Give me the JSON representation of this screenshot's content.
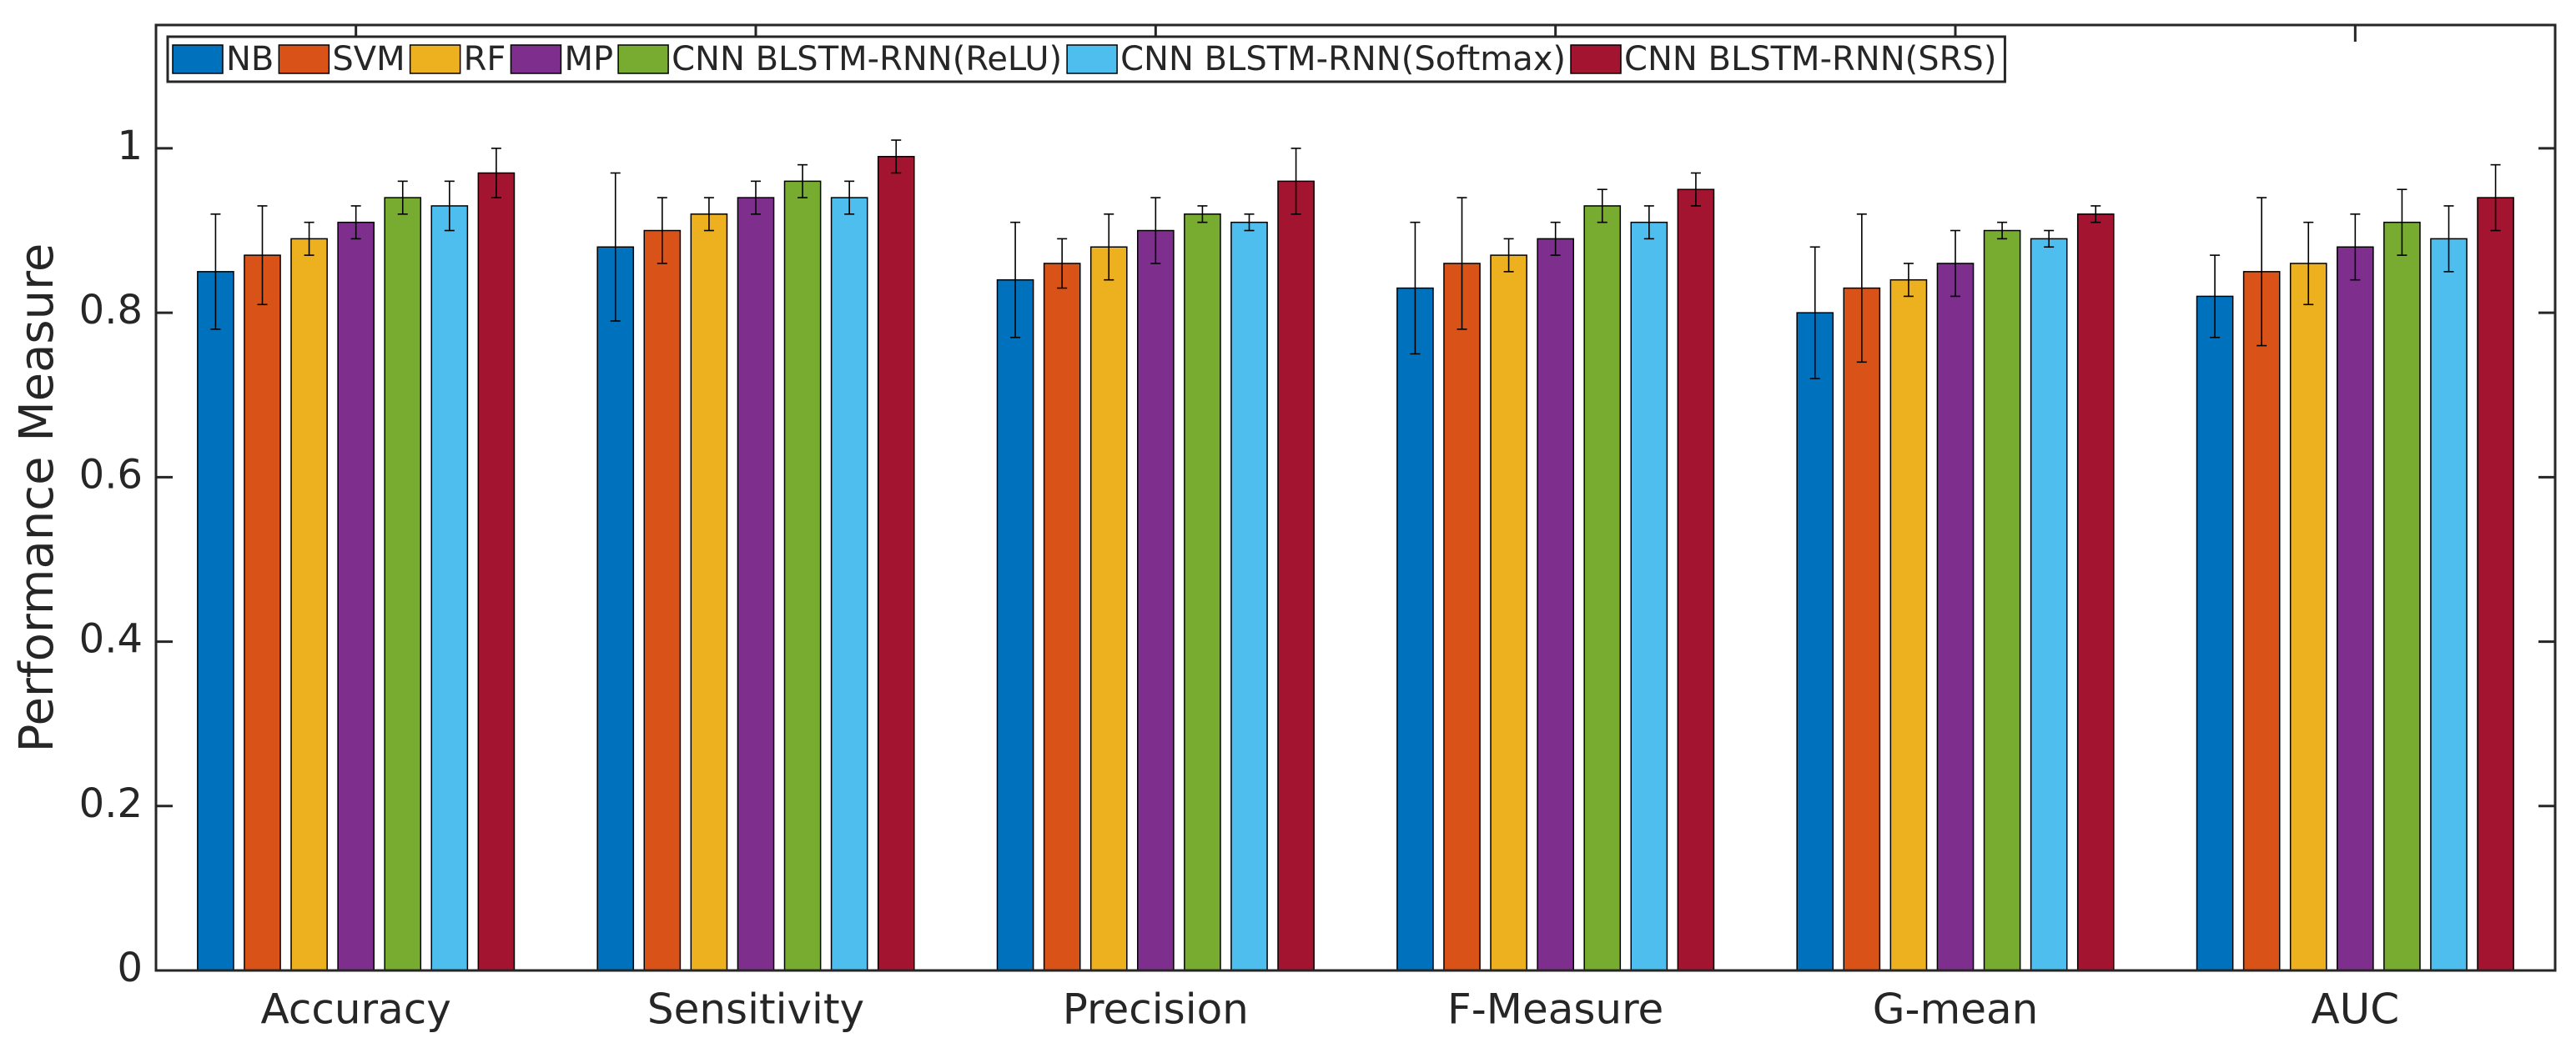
{
  "chart_data": {
    "type": "bar",
    "y_label": "Performance Measure",
    "categories": [
      "Accuracy",
      "Sensitivity",
      "Precision",
      "F-Measure",
      "G-mean",
      "AUC"
    ],
    "series": [
      {
        "name": "NB",
        "color": "#0072bd",
        "values": [
          0.85,
          0.88,
          0.84,
          0.83,
          0.8,
          0.82
        ],
        "errors": [
          0.07,
          0.09,
          0.07,
          0.08,
          0.08,
          0.05
        ]
      },
      {
        "name": "SVM",
        "color": "#d95319",
        "values": [
          0.87,
          0.9,
          0.86,
          0.86,
          0.83,
          0.85
        ],
        "errors": [
          0.06,
          0.04,
          0.03,
          0.08,
          0.09,
          0.09
        ]
      },
      {
        "name": "RF",
        "color": "#edb120",
        "values": [
          0.89,
          0.92,
          0.88,
          0.87,
          0.84,
          0.86
        ],
        "errors": [
          0.02,
          0.02,
          0.04,
          0.02,
          0.02,
          0.05
        ]
      },
      {
        "name": "MP",
        "color": "#7e2f8e",
        "values": [
          0.91,
          0.94,
          0.9,
          0.89,
          0.86,
          0.88
        ],
        "errors": [
          0.02,
          0.02,
          0.04,
          0.02,
          0.04,
          0.04
        ]
      },
      {
        "name": "CNN BLSTM-RNN(ReLU)",
        "color": "#77ac30",
        "values": [
          0.94,
          0.96,
          0.92,
          0.93,
          0.9,
          0.91
        ],
        "errors": [
          0.02,
          0.02,
          0.01,
          0.02,
          0.01,
          0.04
        ]
      },
      {
        "name": "CNN BLSTM-RNN(Softmax)",
        "color": "#4dbeee",
        "values": [
          0.93,
          0.94,
          0.91,
          0.91,
          0.89,
          0.89
        ],
        "errors": [
          0.03,
          0.02,
          0.01,
          0.02,
          0.01,
          0.04
        ]
      },
      {
        "name": "CNN BLSTM-RNN(SRS)",
        "color": "#a2142f",
        "values": [
          0.97,
          0.99,
          0.96,
          0.95,
          0.92,
          0.94
        ],
        "errors": [
          0.03,
          0.02,
          0.04,
          0.02,
          0.01,
          0.04
        ]
      }
    ],
    "ylim": [
      0,
      1.15
    ],
    "yticks": [
      0,
      0.2,
      0.4,
      0.6,
      0.8,
      1
    ],
    "legend": "upper left"
  }
}
